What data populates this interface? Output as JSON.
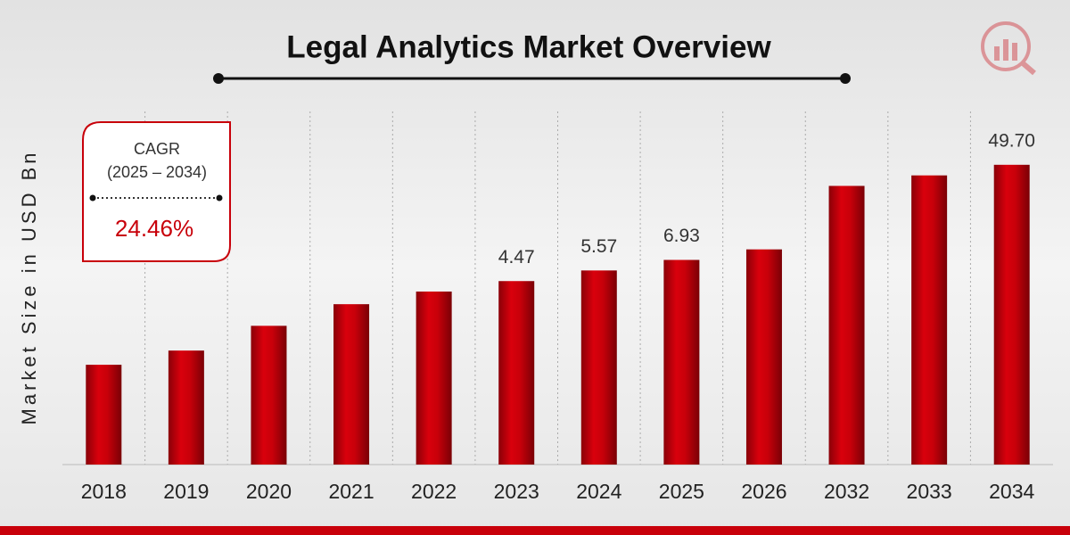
{
  "chart_data": {
    "type": "bar",
    "title": "Legal Analytics Market Overview",
    "y_label": "Market Size in USD Bn",
    "categories": [
      "2018",
      "2019",
      "2020",
      "2021",
      "2022",
      "2023",
      "2024",
      "2025",
      "2026",
      "2032",
      "2033",
      "2034"
    ],
    "values": [
      0.79,
      1.06,
      1.77,
      2.77,
      3.6,
      4.47,
      5.57,
      6.93,
      8.62,
      32.1,
      39.9,
      49.7
    ],
    "value_labels": [
      null,
      null,
      null,
      null,
      null,
      "4.47",
      "5.57",
      "6.93",
      null,
      null,
      null,
      "49.70"
    ],
    "color": "#c8000a",
    "log_scale": true,
    "ylim": [
      0.1,
      150
    ],
    "grid": true,
    "cagr": {
      "label": "CAGR",
      "period": "(2025 – 2034)",
      "value": "24.46%"
    }
  }
}
